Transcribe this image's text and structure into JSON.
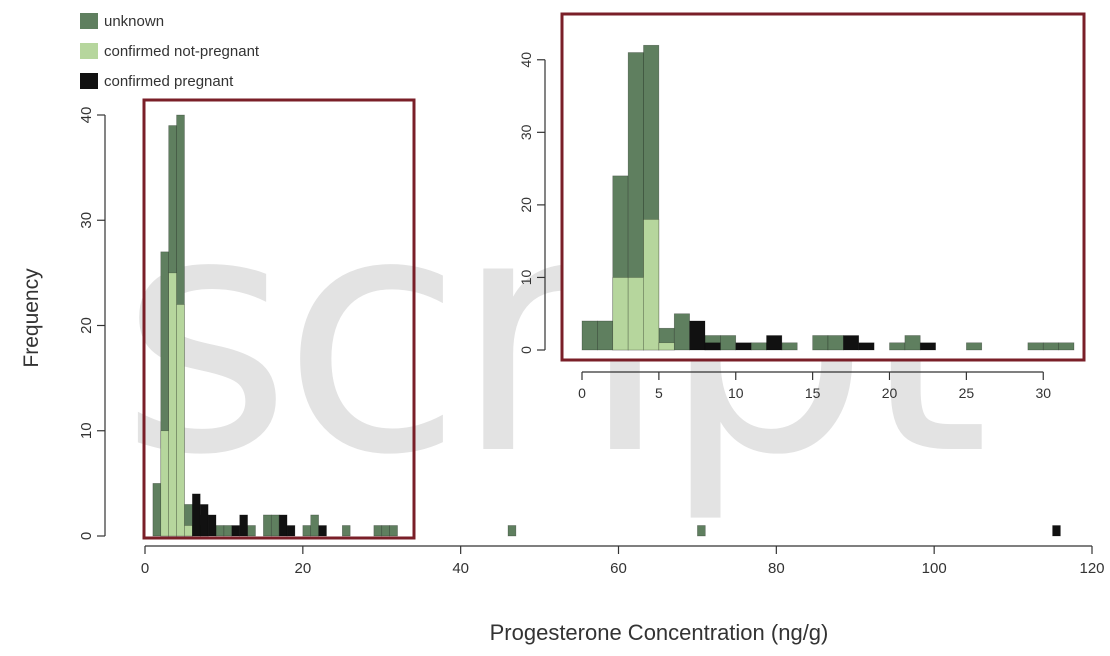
{
  "watermark": "script",
  "colors": {
    "unknown": "#5f7f5f",
    "not_pregnant": "#b6d69d",
    "pregnant": "#111111",
    "inset_border": "#7a1f28"
  },
  "legend": {
    "unknown": "unknown",
    "not_pregnant": "confirmed not-pregnant",
    "pregnant": "confirmed pregnant"
  },
  "chart_data": [
    {
      "type": "bar",
      "xlabel": "Progesterone Concentration (ng/g)",
      "ylabel": "Frequency",
      "xlim": [
        0,
        120
      ],
      "ylim": [
        0,
        40
      ],
      "xticks": [
        "0",
        "20",
        "40",
        "60",
        "80",
        "100",
        "120"
      ],
      "yticks": [
        "0",
        "10",
        "20",
        "30",
        "40"
      ],
      "bin_width": 1,
      "series": [
        {
          "name": "unknown",
          "bins": [
            [
              1,
              5
            ],
            [
              2,
              27
            ],
            [
              3,
              39
            ],
            [
              4,
              40
            ],
            [
              5,
              3
            ],
            [
              6,
              1
            ],
            [
              7,
              2
            ],
            [
              9,
              1
            ],
            [
              10,
              1
            ],
            [
              13,
              1
            ],
            [
              15,
              2
            ],
            [
              16,
              2
            ],
            [
              20,
              1
            ],
            [
              21,
              2
            ],
            [
              25,
              1
            ],
            [
              29,
              1
            ],
            [
              30,
              1
            ],
            [
              31,
              1
            ],
            [
              46,
              1
            ],
            [
              70,
              1
            ]
          ]
        },
        {
          "name": "confirmed not-pregnant",
          "bins": [
            [
              2,
              10
            ],
            [
              3,
              25
            ],
            [
              4,
              22
            ],
            [
              5,
              1
            ]
          ]
        },
        {
          "name": "confirmed pregnant",
          "bins": [
            [
              6,
              4
            ],
            [
              7,
              3
            ],
            [
              8,
              2
            ],
            [
              11,
              1
            ],
            [
              12,
              2
            ],
            [
              17,
              2
            ],
            [
              18,
              1
            ],
            [
              22,
              1
            ],
            [
              115,
              1
            ]
          ]
        }
      ]
    },
    {
      "type": "bar",
      "xlim": [
        0,
        32
      ],
      "ylim": [
        0,
        43
      ],
      "xticks": [
        "0",
        "5",
        "10",
        "15",
        "20",
        "25",
        "30"
      ],
      "yticks": [
        "0",
        "10",
        "20",
        "30",
        "40"
      ],
      "bin_width": 1,
      "series": [
        {
          "name": "unknown",
          "bins": [
            [
              0,
              4
            ],
            [
              1,
              4
            ],
            [
              2,
              24
            ],
            [
              3,
              41
            ],
            [
              4,
              42
            ],
            [
              5,
              3
            ],
            [
              6,
              5
            ],
            [
              8,
              2
            ],
            [
              9,
              2
            ],
            [
              11,
              1
            ],
            [
              13,
              1
            ],
            [
              15,
              2
            ],
            [
              16,
              2
            ],
            [
              20,
              1
            ],
            [
              21,
              2
            ],
            [
              25,
              1
            ],
            [
              29,
              1
            ],
            [
              30,
              1
            ],
            [
              31,
              1
            ]
          ]
        },
        {
          "name": "confirmed not-pregnant",
          "bins": [
            [
              2,
              10
            ],
            [
              3,
              10
            ],
            [
              4,
              18
            ],
            [
              5,
              1
            ]
          ]
        },
        {
          "name": "confirmed pregnant",
          "bins": [
            [
              7,
              4
            ],
            [
              8,
              1
            ],
            [
              10,
              1
            ],
            [
              12,
              2
            ],
            [
              17,
              2
            ],
            [
              18,
              1
            ],
            [
              22,
              1
            ]
          ]
        }
      ]
    }
  ]
}
